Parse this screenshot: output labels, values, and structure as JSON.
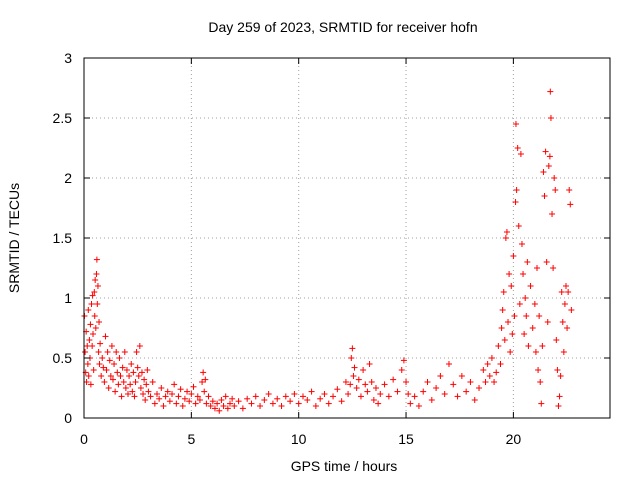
{
  "chart_data": {
    "type": "scatter",
    "title": "Day 259 of 2023, SRMTID for receiver hofn",
    "xlabel": "GPS time / hours",
    "ylabel": "SRMTID / TECUs",
    "xlim": [
      0,
      24.5
    ],
    "ylim": [
      0,
      3
    ],
    "xticks": [
      "0",
      "5",
      "10",
      "15",
      "20"
    ],
    "xtick_values": [
      0,
      5,
      10,
      15,
      20
    ],
    "yticks": [
      "0",
      "0.5",
      "1",
      "1.5",
      "2",
      "2.5",
      "3"
    ],
    "ytick_values": [
      0,
      0.5,
      1,
      1.5,
      2,
      2.5,
      3
    ],
    "grid": true,
    "marker": "+",
    "color": "#ff0000",
    "series": [
      {
        "name": "SRMTID",
        "points": [
          [
            0.02,
            0.85
          ],
          [
            0.05,
            0.55
          ],
          [
            0.08,
            0.38
          ],
          [
            0.1,
            0.72
          ],
          [
            0.12,
            0.3
          ],
          [
            0.15,
            0.6
          ],
          [
            0.18,
            0.45
          ],
          [
            0.2,
            0.9
          ],
          [
            0.22,
            0.35
          ],
          [
            0.25,
            0.65
          ],
          [
            0.28,
            0.5
          ],
          [
            0.3,
            0.78
          ],
          [
            0.32,
            0.28
          ],
          [
            0.35,
            0.95
          ],
          [
            0.38,
            0.6
          ],
          [
            0.4,
            1.02
          ],
          [
            0.42,
            0.7
          ],
          [
            0.45,
            0.4
          ],
          [
            0.48,
            1.05
          ],
          [
            0.5,
            0.85
          ],
          [
            0.52,
            1.15
          ],
          [
            0.55,
            0.75
          ],
          [
            0.58,
            1.2
          ],
          [
            0.6,
            1.32
          ],
          [
            0.62,
            0.95
          ],
          [
            0.65,
            1.1
          ],
          [
            0.68,
            0.55
          ],
          [
            0.7,
            0.8
          ],
          [
            0.72,
            0.45
          ],
          [
            0.75,
            0.62
          ],
          [
            0.8,
            0.35
          ],
          [
            0.85,
            0.5
          ],
          [
            0.9,
            0.42
          ],
          [
            0.95,
            0.3
          ],
          [
            1.0,
            0.68
          ],
          [
            1.05,
            0.4
          ],
          [
            1.1,
            0.55
          ],
          [
            1.15,
            0.25
          ],
          [
            1.2,
            0.48
          ],
          [
            1.25,
            0.35
          ],
          [
            1.3,
            0.6
          ],
          [
            1.35,
            0.32
          ],
          [
            1.4,
            0.45
          ],
          [
            1.45,
            0.22
          ],
          [
            1.5,
            0.55
          ],
          [
            1.55,
            0.38
          ],
          [
            1.6,
            0.28
          ],
          [
            1.65,
            0.5
          ],
          [
            1.7,
            0.35
          ],
          [
            1.75,
            0.18
          ],
          [
            1.8,
            0.42
          ],
          [
            1.85,
            0.3
          ],
          [
            1.9,
            0.55
          ],
          [
            1.95,
            0.25
          ],
          [
            2.0,
            0.4
          ],
          [
            2.05,
            0.2
          ],
          [
            2.1,
            0.35
          ],
          [
            2.15,
            0.28
          ],
          [
            2.2,
            0.45
          ],
          [
            2.25,
            0.22
          ],
          [
            2.3,
            0.38
          ],
          [
            2.35,
            0.18
          ],
          [
            2.4,
            0.3
          ],
          [
            2.45,
            0.55
          ],
          [
            2.5,
            0.42
          ],
          [
            2.55,
            0.35
          ],
          [
            2.6,
            0.6
          ],
          [
            2.65,
            0.25
          ],
          [
            2.7,
            0.38
          ],
          [
            2.75,
            0.2
          ],
          [
            2.8,
            0.32
          ],
          [
            2.85,
            0.15
          ],
          [
            2.9,
            0.28
          ],
          [
            2.95,
            0.4
          ],
          [
            3.0,
            0.22
          ],
          [
            3.1,
            0.18
          ],
          [
            3.2,
            0.3
          ],
          [
            3.3,
            0.12
          ],
          [
            3.4,
            0.2
          ],
          [
            3.5,
            0.16
          ],
          [
            3.6,
            0.25
          ],
          [
            3.7,
            0.1
          ],
          [
            3.8,
            0.18
          ],
          [
            3.9,
            0.22
          ],
          [
            4.0,
            0.14
          ],
          [
            4.1,
            0.2
          ],
          [
            4.2,
            0.28
          ],
          [
            4.3,
            0.12
          ],
          [
            4.4,
            0.18
          ],
          [
            4.5,
            0.24
          ],
          [
            4.6,
            0.1
          ],
          [
            4.7,
            0.16
          ],
          [
            4.8,
            0.22
          ],
          [
            4.9,
            0.14
          ],
          [
            5.0,
            0.2
          ],
          [
            5.1,
            0.26
          ],
          [
            5.2,
            0.12
          ],
          [
            5.3,
            0.18
          ],
          [
            5.4,
            0.15
          ],
          [
            5.5,
            0.3
          ],
          [
            5.55,
            0.38
          ],
          [
            5.6,
            0.22
          ],
          [
            5.65,
            0.32
          ],
          [
            5.7,
            0.12
          ],
          [
            5.8,
            0.18
          ],
          [
            5.9,
            0.1
          ],
          [
            6.0,
            0.14
          ],
          [
            6.1,
            0.08
          ],
          [
            6.2,
            0.12
          ],
          [
            6.3,
            0.06
          ],
          [
            6.4,
            0.15
          ],
          [
            6.5,
            0.1
          ],
          [
            6.6,
            0.18
          ],
          [
            6.7,
            0.08
          ],
          [
            6.8,
            0.12
          ],
          [
            6.9,
            0.16
          ],
          [
            7.0,
            0.1
          ],
          [
            7.2,
            0.14
          ],
          [
            7.4,
            0.08
          ],
          [
            7.6,
            0.16
          ],
          [
            7.8,
            0.12
          ],
          [
            8.0,
            0.18
          ],
          [
            8.2,
            0.1
          ],
          [
            8.4,
            0.15
          ],
          [
            8.6,
            0.2
          ],
          [
            8.8,
            0.12
          ],
          [
            9.0,
            0.16
          ],
          [
            9.2,
            0.1
          ],
          [
            9.4,
            0.18
          ],
          [
            9.6,
            0.14
          ],
          [
            9.8,
            0.2
          ],
          [
            10.0,
            0.12
          ],
          [
            10.2,
            0.18
          ],
          [
            10.4,
            0.15
          ],
          [
            10.6,
            0.22
          ],
          [
            10.8,
            0.1
          ],
          [
            11.0,
            0.16
          ],
          [
            11.2,
            0.2
          ],
          [
            11.4,
            0.12
          ],
          [
            11.6,
            0.18
          ],
          [
            11.8,
            0.24
          ],
          [
            12.0,
            0.14
          ],
          [
            12.2,
            0.3
          ],
          [
            12.3,
            0.2
          ],
          [
            12.4,
            0.28
          ],
          [
            12.45,
            0.5
          ],
          [
            12.5,
            0.58
          ],
          [
            12.55,
            0.35
          ],
          [
            12.6,
            0.42
          ],
          [
            12.7,
            0.25
          ],
          [
            12.8,
            0.32
          ],
          [
            12.9,
            0.18
          ],
          [
            13.0,
            0.4
          ],
          [
            13.1,
            0.28
          ],
          [
            13.2,
            0.22
          ],
          [
            13.3,
            0.45
          ],
          [
            13.4,
            0.3
          ],
          [
            13.5,
            0.15
          ],
          [
            13.6,
            0.25
          ],
          [
            13.7,
            0.12
          ],
          [
            13.8,
            0.2
          ],
          [
            14.0,
            0.28
          ],
          [
            14.2,
            0.18
          ],
          [
            14.4,
            0.32
          ],
          [
            14.6,
            0.22
          ],
          [
            14.8,
            0.4
          ],
          [
            14.9,
            0.48
          ],
          [
            15.0,
            0.3
          ],
          [
            15.1,
            0.2
          ],
          [
            15.2,
            0.12
          ],
          [
            15.4,
            0.18
          ],
          [
            15.6,
            0.1
          ],
          [
            15.8,
            0.22
          ],
          [
            16.0,
            0.3
          ],
          [
            16.2,
            0.15
          ],
          [
            16.4,
            0.25
          ],
          [
            16.6,
            0.35
          ],
          [
            16.8,
            0.2
          ],
          [
            17.0,
            0.45
          ],
          [
            17.2,
            0.28
          ],
          [
            17.4,
            0.18
          ],
          [
            17.6,
            0.35
          ],
          [
            17.8,
            0.22
          ],
          [
            18.0,
            0.3
          ],
          [
            18.2,
            0.15
          ],
          [
            18.4,
            0.25
          ],
          [
            18.6,
            0.4
          ],
          [
            18.7,
            0.3
          ],
          [
            18.8,
            0.45
          ],
          [
            18.9,
            0.35
          ],
          [
            19.0,
            0.5
          ],
          [
            19.1,
            0.3
          ],
          [
            19.2,
            0.38
          ],
          [
            19.3,
            0.6
          ],
          [
            19.4,
            0.45
          ],
          [
            19.45,
            0.75
          ],
          [
            19.5,
            0.9
          ],
          [
            19.55,
            1.05
          ],
          [
            19.6,
            0.65
          ],
          [
            19.65,
            1.5
          ],
          [
            19.7,
            1.55
          ],
          [
            19.75,
            0.8
          ],
          [
            19.8,
            1.2
          ],
          [
            19.85,
            0.55
          ],
          [
            19.9,
            1.1
          ],
          [
            19.95,
            0.7
          ],
          [
            20.0,
            1.35
          ],
          [
            20.05,
            0.85
          ],
          [
            20.1,
            1.8
          ],
          [
            20.12,
            2.45
          ],
          [
            20.15,
            1.9
          ],
          [
            20.2,
            2.25
          ],
          [
            20.25,
            1.6
          ],
          [
            20.3,
            0.95
          ],
          [
            20.35,
            2.2
          ],
          [
            20.4,
            1.45
          ],
          [
            20.45,
            1.2
          ],
          [
            20.5,
            0.7
          ],
          [
            20.55,
            1.0
          ],
          [
            20.6,
            0.85
          ],
          [
            20.65,
            1.3
          ],
          [
            20.7,
            0.6
          ],
          [
            20.8,
            1.1
          ],
          [
            20.9,
            0.75
          ],
          [
            21.0,
            0.95
          ],
          [
            21.05,
            0.55
          ],
          [
            21.1,
            1.25
          ],
          [
            21.15,
            0.4
          ],
          [
            21.2,
            0.85
          ],
          [
            21.25,
            0.3
          ],
          [
            21.3,
            0.12
          ],
          [
            21.35,
            0.6
          ],
          [
            21.4,
            2.05
          ],
          [
            21.45,
            1.85
          ],
          [
            21.5,
            2.22
          ],
          [
            21.55,
            1.3
          ],
          [
            21.6,
            0.8
          ],
          [
            21.65,
            2.1
          ],
          [
            21.7,
            2.18
          ],
          [
            21.72,
            2.72
          ],
          [
            21.75,
            2.5
          ],
          [
            21.8,
            1.7
          ],
          [
            21.85,
            1.25
          ],
          [
            21.9,
            2.0
          ],
          [
            21.95,
            1.9
          ],
          [
            22.0,
            0.65
          ],
          [
            22.05,
            0.4
          ],
          [
            22.1,
            0.1
          ],
          [
            22.15,
            0.18
          ],
          [
            22.2,
            0.35
          ],
          [
            22.25,
            1.05
          ],
          [
            22.3,
            0.8
          ],
          [
            22.35,
            0.55
          ],
          [
            22.4,
            0.95
          ],
          [
            22.45,
            1.1
          ],
          [
            22.5,
            0.75
          ],
          [
            22.55,
            1.05
          ],
          [
            22.6,
            1.9
          ],
          [
            22.65,
            1.78
          ],
          [
            22.7,
            0.9
          ]
        ]
      }
    ]
  }
}
